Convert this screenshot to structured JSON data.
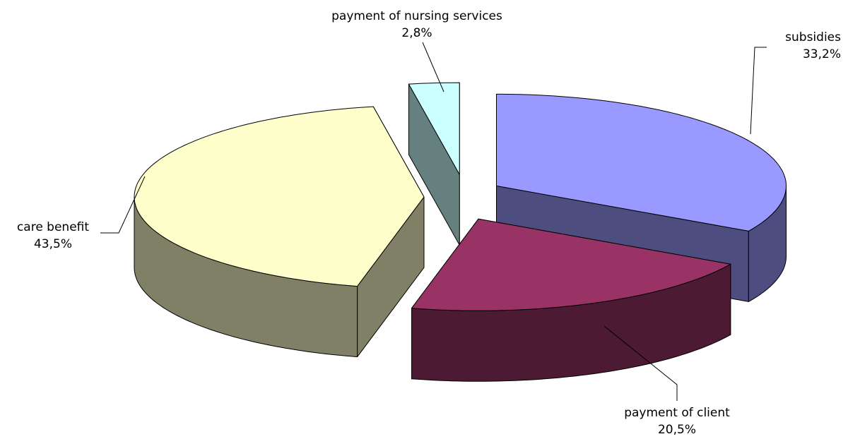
{
  "chart_data": {
    "type": "pie3d",
    "categories": [
      "subsidies",
      "payment of client",
      "care benefit",
      "payment of nursing services"
    ],
    "values": [
      33.2,
      20.5,
      43.5,
      2.8
    ],
    "value_labels": [
      "33,2%",
      "20,5%",
      "43,5%",
      "2,8%"
    ],
    "colors": [
      "#9999ff",
      "#993366",
      "#ffffcc",
      "#ccffff"
    ]
  }
}
